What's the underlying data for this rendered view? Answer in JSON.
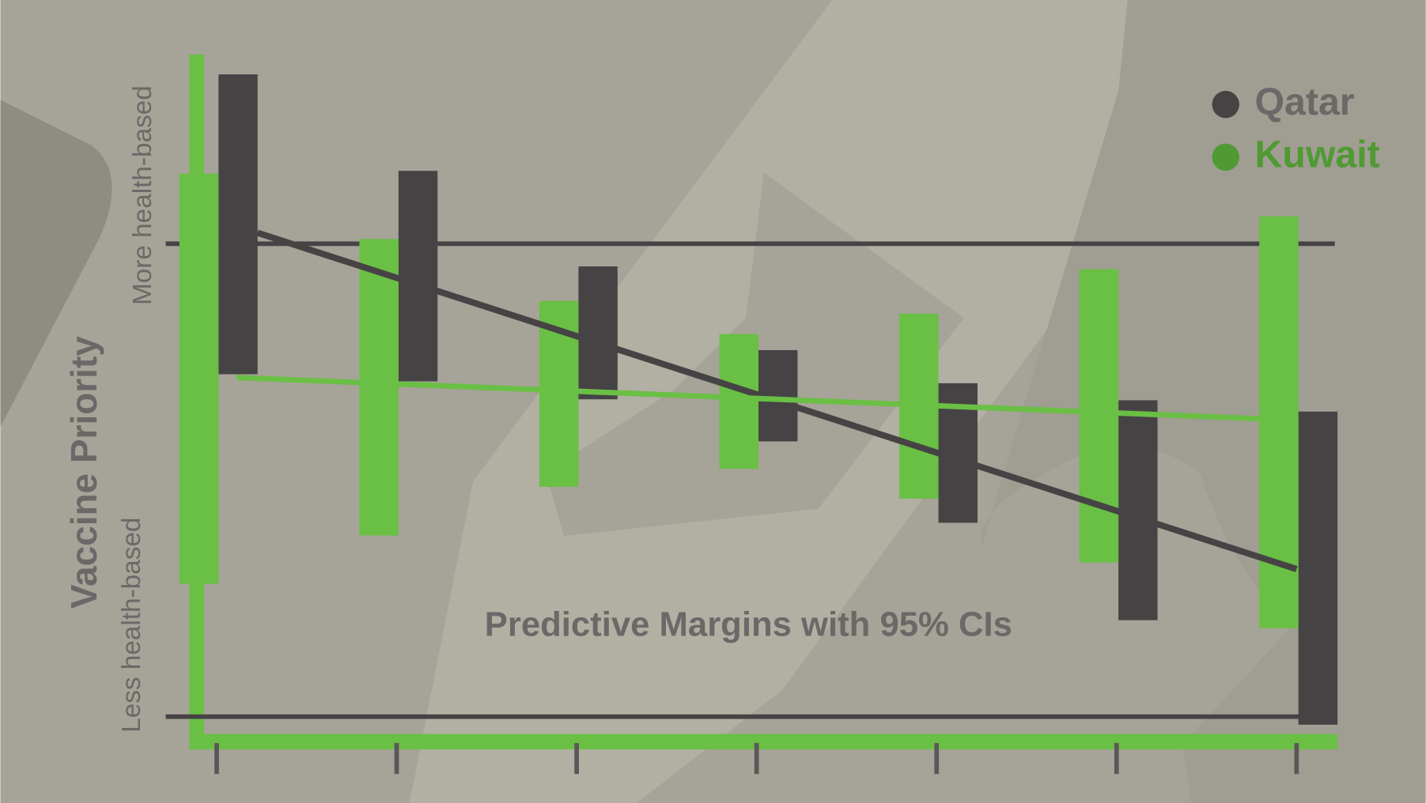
{
  "chart_data": {
    "type": "range-bar",
    "title": "Predictive Margins with 95% CIs",
    "y_label": "Vaccine Priority",
    "y_top_label": "More health-based",
    "y_bottom_label": "Less health-based",
    "categories": [
      null,
      null,
      null,
      null,
      null,
      null,
      null
    ],
    "ylim": [
      -0.05,
      1.4
    ],
    "reference_lines": [
      0,
      1
    ],
    "legend_position": "top-right",
    "series": [
      {
        "name": "Qatar",
        "color": "#464345",
        "label_color": "#6b6868",
        "low": [
          0.724,
          0.709,
          0.671,
          0.582,
          0.41,
          0.204,
          -0.017
        ],
        "high": [
          1.358,
          1.154,
          0.952,
          0.775,
          0.705,
          0.669,
          0.645
        ],
        "fit": [
          1.023,
          0.312
        ]
      },
      {
        "name": "Kuwait",
        "color": "#6abf45",
        "label_color": "#4f9a33",
        "low": [
          0.281,
          0.383,
          0.486,
          0.524,
          0.461,
          0.326,
          0.187
        ],
        "high": [
          1.148,
          1.01,
          0.879,
          0.809,
          0.852,
          0.946,
          1.058
        ],
        "fit": [
          0.717,
          0.63
        ]
      }
    ]
  }
}
